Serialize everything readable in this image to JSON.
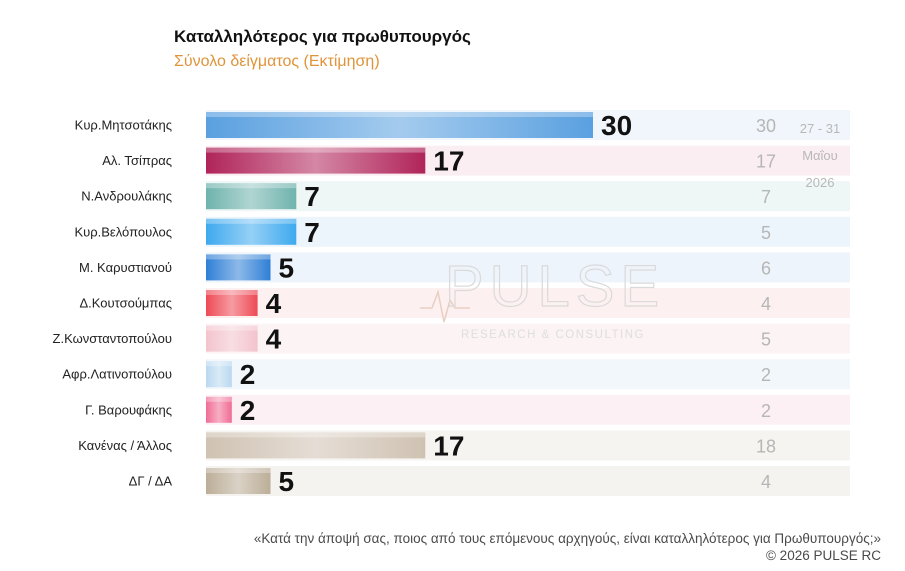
{
  "chart_data": {
    "type": "bar",
    "orientation": "horizontal",
    "title": "Καταλληλότερος για πρωθυπουργός",
    "subtitle": "Σύνολο δείγματος  (Εκτίμηση)",
    "categories": [
      "Κυρ.Μητσοτάκης",
      "Αλ. Τσίπρας",
      "Ν.Ανδρουλάκης",
      "Κυρ.Βελόπουλος",
      "Μ. Καρυστιανού",
      "Δ.Κουτσούμπας",
      "Ζ.Κωνσταντοπούλου",
      "Αφρ.Λατινοπούλου",
      "Γ. Βαρουφάκης",
      "Κανένας / Άλλος",
      "ΔΓ / ΔΑ"
    ],
    "series": [
      {
        "values": [
          30,
          17,
          7,
          7,
          5,
          4,
          4,
          2,
          2,
          17,
          5
        ]
      },
      {
        "values": [
          30,
          17,
          7,
          5,
          6,
          4,
          5,
          2,
          2,
          18,
          4
        ]
      }
    ],
    "previous_period_label": [
      "27 - 31",
      "Μαΐου",
      "2026"
    ],
    "bar_colors": [
      "#5aa0e0",
      "#b0245a",
      "#6fb3ad",
      "#3ea9ee",
      "#2f7fd6",
      "#ee4a55",
      "#f3c3cd",
      "#b9d8f0",
      "#f06c94",
      "#cfc2b2",
      "#bcae98"
    ],
    "row_backgrounds": [
      "#f1f6fc",
      "#fbeef2",
      "#eef6f6",
      "#edf5fc",
      "#eef4fb",
      "#fcf0f1",
      "#fcf3f5",
      "#f2f7fc",
      "#fcf0f4",
      "#f6f4f1",
      "#f5f3ef"
    ],
    "xlim": [
      0,
      30
    ],
    "grid": false,
    "legend": "none"
  },
  "watermark": {
    "name": "PULSE",
    "tagline": "RESEARCH & CONSULTING"
  },
  "footer": {
    "question": "«Κατά την άποψή σας, ποιος από τους επόμενους αρχηγούς, είναι καταλληλότερος για Πρωθυπουργός;»",
    "copyright": "©  2026  PULSE RC"
  }
}
